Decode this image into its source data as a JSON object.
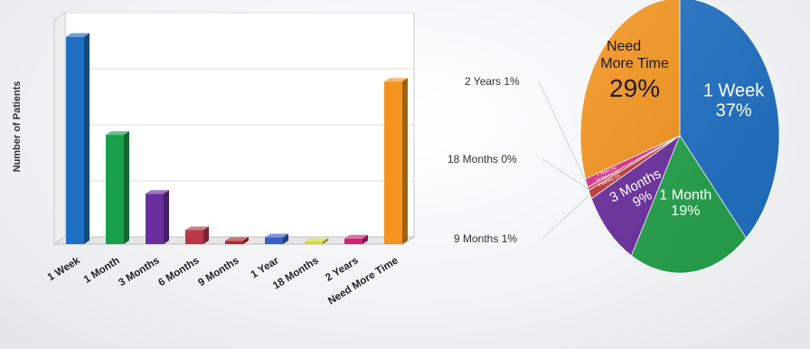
{
  "chart_data": [
    {
      "type": "bar",
      "ylabel": "Number of Patients",
      "categories": [
        "1 Week",
        "1 Month",
        "3 Months",
        "6 Months",
        "9 Months",
        "1 Year",
        "18 Months",
        "2 Years",
        "Need More Time"
      ],
      "values": [
        37,
        19.5,
        9,
        2.5,
        0.6,
        1.2,
        0.4,
        1,
        29
      ],
      "ylim": [
        0,
        40
      ],
      "grid": true,
      "colors": [
        "#1e6fc4",
        "#18a04a",
        "#6a2f9e",
        "#b8384a",
        "#b02a30",
        "#3a5fc2",
        "#d4d62a",
        "#d0207a",
        "#f5941e"
      ]
    },
    {
      "type": "pie",
      "slices": [
        {
          "label": "1 Week",
          "value": 37,
          "text": "37%",
          "color": "#1e6fc4"
        },
        {
          "label": "1 Month",
          "value": 19,
          "text": "19%",
          "color": "#22a24a"
        },
        {
          "label": "3 Months",
          "value": 9,
          "text": "9%",
          "color": "#6a2f9e"
        },
        {
          "label": "9 Months",
          "value": 1,
          "text": "1%",
          "color": "#c23a3a"
        },
        {
          "label": "18 Months",
          "value": 0.4,
          "text": "0%",
          "color": "#e05060"
        },
        {
          "label": "2 Years",
          "value": 1,
          "text": "1%",
          "color": "#e0308a"
        },
        {
          "label": "Need More Time",
          "value": 29,
          "text": "29%",
          "color": "#f5941e"
        }
      ],
      "callouts": [
        "2 Years 1%",
        "18 Months 0%",
        "9 Months 1%"
      ]
    }
  ]
}
